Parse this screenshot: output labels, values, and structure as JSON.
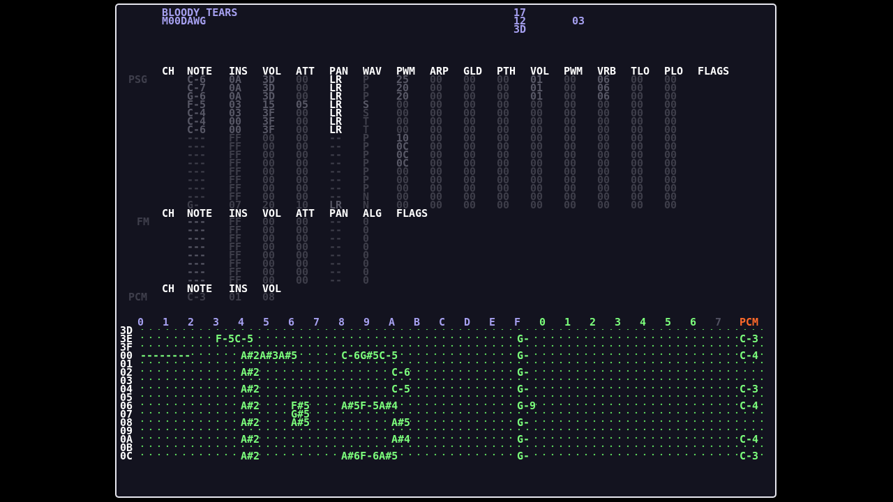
{
  "header": {
    "song_title": "BLOODY TEARS",
    "author": "M00DAWG",
    "values": [
      "17",
      "12",
      "3D"
    ],
    "extra_value": "03"
  },
  "psg": {
    "label": "PSG",
    "columns": [
      "CH",
      "NOTE",
      "INS",
      "VOL",
      "ATT",
      "PAN",
      "WAV",
      "PWM",
      "ARP",
      "GLD",
      "PTH",
      "VOL",
      "PWM",
      "VRB",
      "TLO",
      "PLO",
      "FLAGS"
    ],
    "rows": [
      [
        "C-6",
        "0A",
        "3D",
        "00",
        "LR",
        "P",
        "25",
        "00",
        "00",
        "00",
        "01",
        "00",
        "06",
        "00",
        "00"
      ],
      [
        "C-7",
        "0A",
        "3D",
        "00",
        "LR",
        "P",
        "20",
        "00",
        "00",
        "00",
        "01",
        "00",
        "06",
        "00",
        "00"
      ],
      [
        "G-6",
        "0A",
        "3D",
        "00",
        "LR",
        "P",
        "20",
        "00",
        "00",
        "00",
        "01",
        "00",
        "06",
        "00",
        "00"
      ],
      [
        "F-5",
        "03",
        "15",
        "05",
        "LR",
        "S",
        "00",
        "00",
        "00",
        "00",
        "00",
        "00",
        "00",
        "00",
        "00"
      ],
      [
        "C-4",
        "03",
        "3F",
        "00",
        "LR",
        "S",
        "00",
        "00",
        "00",
        "00",
        "00",
        "00",
        "00",
        "00",
        "00"
      ],
      [
        "C-4",
        "00",
        "3F",
        "00",
        "LR",
        "T",
        "00",
        "00",
        "00",
        "00",
        "00",
        "00",
        "00",
        "00",
        "00"
      ],
      [
        "C-6",
        "00",
        "3F",
        "00",
        "LR",
        "T",
        "00",
        "00",
        "00",
        "00",
        "00",
        "00",
        "00",
        "00",
        "00"
      ],
      [
        "---",
        "FF",
        "00",
        "00",
        "--",
        "P",
        "10",
        "00",
        "00",
        "00",
        "00",
        "00",
        "00",
        "00",
        "00"
      ],
      [
        "---",
        "FF",
        "00",
        "00",
        "--",
        "P",
        "0C",
        "00",
        "00",
        "00",
        "00",
        "00",
        "00",
        "00",
        "00"
      ],
      [
        "---",
        "FF",
        "00",
        "00",
        "--",
        "P",
        "0C",
        "00",
        "00",
        "00",
        "00",
        "00",
        "00",
        "00",
        "00"
      ],
      [
        "---",
        "FF",
        "00",
        "00",
        "--",
        "P",
        "0C",
        "00",
        "00",
        "00",
        "00",
        "00",
        "00",
        "00",
        "00"
      ],
      [
        "---",
        "FF",
        "00",
        "00",
        "--",
        "P",
        "00",
        "00",
        "00",
        "00",
        "00",
        "00",
        "00",
        "00",
        "00"
      ],
      [
        "---",
        "FF",
        "00",
        "00",
        "--",
        "P",
        "00",
        "00",
        "00",
        "00",
        "00",
        "00",
        "00",
        "00",
        "00"
      ],
      [
        "---",
        "FF",
        "00",
        "00",
        "--",
        "P",
        "00",
        "00",
        "00",
        "00",
        "00",
        "00",
        "00",
        "00",
        "00"
      ],
      [
        "---",
        "FF",
        "00",
        "00",
        "--",
        "N",
        "00",
        "00",
        "00",
        "00",
        "00",
        "00",
        "00",
        "00",
        "00"
      ],
      [
        "G-",
        "07",
        "20",
        "10",
        "LR",
        "N",
        "00",
        "00",
        "00",
        "00",
        "00",
        "00",
        "00",
        "00",
        "00"
      ]
    ]
  },
  "fm": {
    "label": "FM",
    "columns": [
      "CH",
      "NOTE",
      "INS",
      "VOL",
      "ATT",
      "PAN",
      "ALG",
      "FLAGS"
    ],
    "rows": [
      [
        "---",
        "FF",
        "00",
        "00",
        "--",
        "0"
      ],
      [
        "---",
        "FF",
        "00",
        "00",
        "--",
        "0"
      ],
      [
        "---",
        "FF",
        "00",
        "00",
        "--",
        "0"
      ],
      [
        "---",
        "FF",
        "00",
        "00",
        "--",
        "0"
      ],
      [
        "---",
        "FF",
        "00",
        "00",
        "--",
        "0"
      ],
      [
        "---",
        "FF",
        "00",
        "00",
        "--",
        "0"
      ],
      [
        "---",
        "FF",
        "00",
        "00",
        "--",
        "0"
      ],
      [
        "---",
        "FF",
        "00",
        "00",
        "--",
        "0"
      ]
    ]
  },
  "pcm": {
    "label": "PCM",
    "columns": [
      "CH",
      "NOTE",
      "INS",
      "VOL"
    ],
    "row": [
      "C-3",
      "01",
      "08"
    ]
  },
  "pattern": {
    "channels": [
      "0",
      "1",
      "2",
      "3",
      "4",
      "5",
      "6",
      "7",
      "8",
      "9",
      "A",
      "B",
      "C",
      "D",
      "E",
      "F",
      "0",
      "1",
      "2",
      "3",
      "4",
      "5",
      "6",
      "7",
      "PCM"
    ],
    "row_numbers": [
      "3D",
      "3E",
      "3F",
      "00",
      "01",
      "02",
      "03",
      "04",
      "05",
      "06",
      "07",
      "08",
      "09",
      "0A",
      "0B",
      "0C"
    ],
    "notes": [
      {
        "row": 1,
        "col": 3,
        "text": "F-5C-5"
      },
      {
        "row": 1,
        "col": 15,
        "text": "G-"
      },
      {
        "row": 1,
        "col": 24,
        "text": "C-3"
      },
      {
        "row": 3,
        "col": 0,
        "text": "--------"
      },
      {
        "row": 3,
        "col": 4,
        "text": "A#2A#3A#5"
      },
      {
        "row": 3,
        "col": 8,
        "text": "C-6G#5C-5"
      },
      {
        "row": 3,
        "col": 15,
        "text": "G-"
      },
      {
        "row": 3,
        "col": 24,
        "text": "C-4"
      },
      {
        "row": 5,
        "col": 4,
        "text": "A#2"
      },
      {
        "row": 5,
        "col": 10,
        "text": "C-6"
      },
      {
        "row": 5,
        "col": 15,
        "text": "G-"
      },
      {
        "row": 7,
        "col": 4,
        "text": "A#2"
      },
      {
        "row": 7,
        "col": 10,
        "text": "C-5"
      },
      {
        "row": 7,
        "col": 15,
        "text": "G-"
      },
      {
        "row": 7,
        "col": 24,
        "text": "C-3"
      },
      {
        "row": 9,
        "col": 4,
        "text": "A#2"
      },
      {
        "row": 9,
        "col": 6,
        "text": "F#5"
      },
      {
        "row": 9,
        "col": 8,
        "text": "A#5F-5A#4"
      },
      {
        "row": 9,
        "col": 15,
        "text": "G-9"
      },
      {
        "row": 9,
        "col": 24,
        "text": "C-4"
      },
      {
        "row": 10,
        "col": 6,
        "text": "G#5"
      },
      {
        "row": 11,
        "col": 4,
        "text": "A#2"
      },
      {
        "row": 11,
        "col": 6,
        "text": "A#5"
      },
      {
        "row": 11,
        "col": 10,
        "text": "A#5"
      },
      {
        "row": 11,
        "col": 15,
        "text": "G-"
      },
      {
        "row": 13,
        "col": 4,
        "text": "A#2"
      },
      {
        "row": 13,
        "col": 10,
        "text": "A#4"
      },
      {
        "row": 13,
        "col": 15,
        "text": "G-"
      },
      {
        "row": 13,
        "col": 24,
        "text": "C-4"
      },
      {
        "row": 15,
        "col": 4,
        "text": "A#2"
      },
      {
        "row": 15,
        "col": 8,
        "text": "A#6F-6A#5"
      },
      {
        "row": 15,
        "col": 15,
        "text": "G-"
      },
      {
        "row": 15,
        "col": 24,
        "text": "C-3"
      }
    ]
  },
  "colors": {
    "background": "#13131f",
    "border": "#e6e6ee",
    "title": "#a6a0f0",
    "header": "#ffffff",
    "active": "#585866",
    "inactive": "#3e3e4a",
    "pattern": "#7cff7c",
    "pcm_header": "#ff6a2a"
  }
}
